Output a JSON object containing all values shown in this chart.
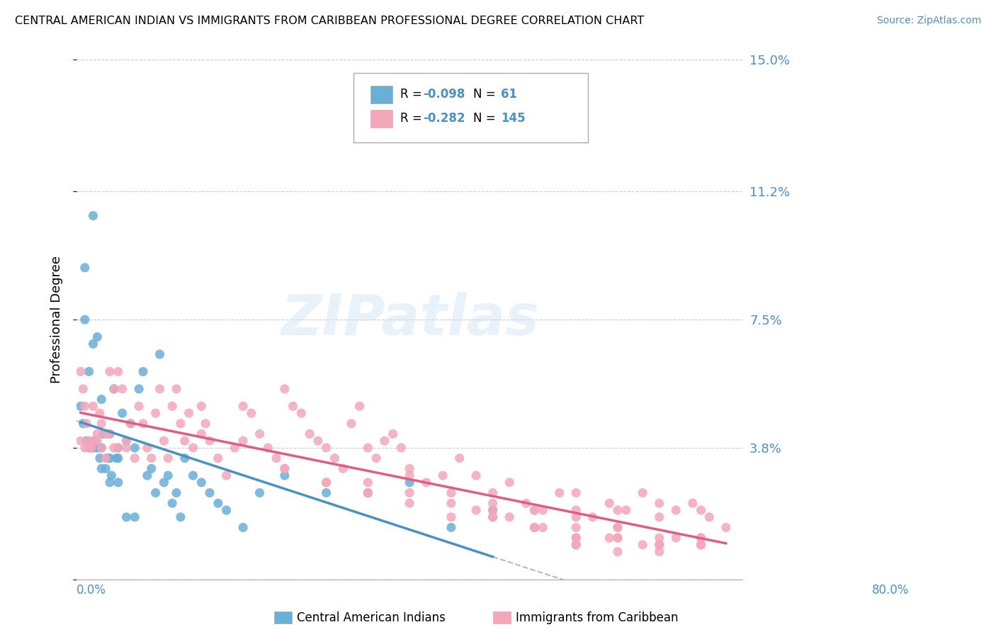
{
  "title": "CENTRAL AMERICAN INDIAN VS IMMIGRANTS FROM CARIBBEAN PROFESSIONAL DEGREE CORRELATION CHART",
  "source": "Source: ZipAtlas.com",
  "ylabel": "Professional Degree",
  "xmin": 0.0,
  "xmax": 0.8,
  "ymin": 0.0,
  "ymax": 0.15,
  "yticks": [
    0.0,
    0.038,
    0.075,
    0.112,
    0.15
  ],
  "ytick_labels": [
    "",
    "3.8%",
    "7.5%",
    "11.2%",
    "15.0%"
  ],
  "color_blue": "#6aafd6",
  "color_pink": "#f4a7b9",
  "line_color_blue": "#4a90c4",
  "line_color_pink": "#e05c80",
  "line_color_dashed": "#b8b8b8",
  "blue_scatter_x": [
    0.005,
    0.008,
    0.01,
    0.01,
    0.012,
    0.015,
    0.015,
    0.018,
    0.02,
    0.02,
    0.022,
    0.025,
    0.025,
    0.028,
    0.03,
    0.03,
    0.032,
    0.035,
    0.038,
    0.04,
    0.04,
    0.042,
    0.045,
    0.048,
    0.05,
    0.05,
    0.055,
    0.06,
    0.065,
    0.07,
    0.075,
    0.08,
    0.085,
    0.09,
    0.095,
    0.1,
    0.105,
    0.11,
    0.115,
    0.12,
    0.125,
    0.13,
    0.14,
    0.15,
    0.16,
    0.17,
    0.18,
    0.2,
    0.22,
    0.25,
    0.3,
    0.35,
    0.4,
    0.45,
    0.5,
    0.02,
    0.03,
    0.04,
    0.05,
    0.06,
    0.07
  ],
  "blue_scatter_y": [
    0.05,
    0.045,
    0.09,
    0.075,
    0.04,
    0.06,
    0.038,
    0.038,
    0.068,
    0.105,
    0.04,
    0.07,
    0.038,
    0.035,
    0.032,
    0.038,
    0.042,
    0.032,
    0.035,
    0.028,
    0.042,
    0.03,
    0.055,
    0.035,
    0.035,
    0.038,
    0.048,
    0.04,
    0.045,
    0.038,
    0.055,
    0.06,
    0.03,
    0.032,
    0.025,
    0.065,
    0.028,
    0.03,
    0.022,
    0.025,
    0.018,
    0.035,
    0.03,
    0.028,
    0.025,
    0.022,
    0.02,
    0.015,
    0.025,
    0.03,
    0.025,
    0.025,
    0.028,
    0.015,
    0.02,
    0.038,
    0.052,
    0.035,
    0.028,
    0.018,
    0.018
  ],
  "pink_scatter_x": [
    0.005,
    0.005,
    0.008,
    0.01,
    0.01,
    0.012,
    0.015,
    0.015,
    0.018,
    0.02,
    0.02,
    0.025,
    0.025,
    0.028,
    0.03,
    0.03,
    0.035,
    0.035,
    0.04,
    0.04,
    0.045,
    0.045,
    0.05,
    0.05,
    0.055,
    0.06,
    0.06,
    0.065,
    0.07,
    0.075,
    0.08,
    0.085,
    0.09,
    0.095,
    0.1,
    0.105,
    0.11,
    0.115,
    0.12,
    0.125,
    0.13,
    0.135,
    0.14,
    0.15,
    0.155,
    0.16,
    0.17,
    0.18,
    0.19,
    0.2,
    0.21,
    0.22,
    0.23,
    0.24,
    0.25,
    0.26,
    0.27,
    0.28,
    0.29,
    0.3,
    0.31,
    0.32,
    0.33,
    0.34,
    0.35,
    0.36,
    0.37,
    0.38,
    0.39,
    0.4,
    0.42,
    0.44,
    0.46,
    0.48,
    0.5,
    0.52,
    0.54,
    0.56,
    0.58,
    0.6,
    0.62,
    0.64,
    0.66,
    0.68,
    0.7,
    0.72,
    0.74,
    0.76,
    0.78,
    0.15,
    0.2,
    0.25,
    0.3,
    0.35,
    0.4,
    0.45,
    0.5,
    0.55,
    0.6,
    0.65,
    0.7,
    0.75,
    0.48,
    0.52,
    0.56,
    0.6,
    0.64,
    0.68,
    0.72,
    0.35,
    0.4,
    0.45,
    0.5,
    0.55,
    0.6,
    0.65,
    0.7,
    0.75,
    0.25,
    0.3,
    0.35,
    0.4,
    0.45,
    0.5,
    0.55,
    0.6,
    0.65,
    0.7,
    0.75,
    0.5,
    0.55,
    0.6,
    0.65,
    0.7,
    0.75,
    0.55,
    0.6,
    0.65,
    0.7,
    0.75,
    0.6,
    0.65,
    0.7
  ],
  "pink_scatter_y": [
    0.06,
    0.04,
    0.055,
    0.05,
    0.038,
    0.045,
    0.04,
    0.038,
    0.038,
    0.05,
    0.04,
    0.04,
    0.042,
    0.048,
    0.045,
    0.038,
    0.042,
    0.035,
    0.042,
    0.06,
    0.038,
    0.055,
    0.06,
    0.038,
    0.055,
    0.04,
    0.038,
    0.045,
    0.035,
    0.05,
    0.045,
    0.038,
    0.035,
    0.048,
    0.055,
    0.04,
    0.035,
    0.05,
    0.055,
    0.045,
    0.04,
    0.048,
    0.038,
    0.05,
    0.045,
    0.04,
    0.035,
    0.03,
    0.038,
    0.04,
    0.048,
    0.042,
    0.038,
    0.035,
    0.055,
    0.05,
    0.048,
    0.042,
    0.04,
    0.038,
    0.035,
    0.032,
    0.045,
    0.05,
    0.038,
    0.035,
    0.04,
    0.042,
    0.038,
    0.032,
    0.028,
    0.03,
    0.035,
    0.03,
    0.025,
    0.028,
    0.022,
    0.02,
    0.025,
    0.02,
    0.018,
    0.022,
    0.02,
    0.025,
    0.018,
    0.02,
    0.022,
    0.018,
    0.015,
    0.042,
    0.05,
    0.032,
    0.028,
    0.025,
    0.03,
    0.025,
    0.022,
    0.02,
    0.025,
    0.02,
    0.022,
    0.02,
    0.02,
    0.018,
    0.015,
    0.018,
    0.012,
    0.01,
    0.012,
    0.028,
    0.025,
    0.022,
    0.018,
    0.02,
    0.015,
    0.012,
    0.01,
    0.012,
    0.032,
    0.028,
    0.025,
    0.022,
    0.018,
    0.02,
    0.015,
    0.012,
    0.015,
    0.012,
    0.01,
    0.018,
    0.015,
    0.012,
    0.015,
    0.01,
    0.012,
    0.015,
    0.01,
    0.012,
    0.008,
    0.01,
    0.01,
    0.008,
    0.01
  ]
}
